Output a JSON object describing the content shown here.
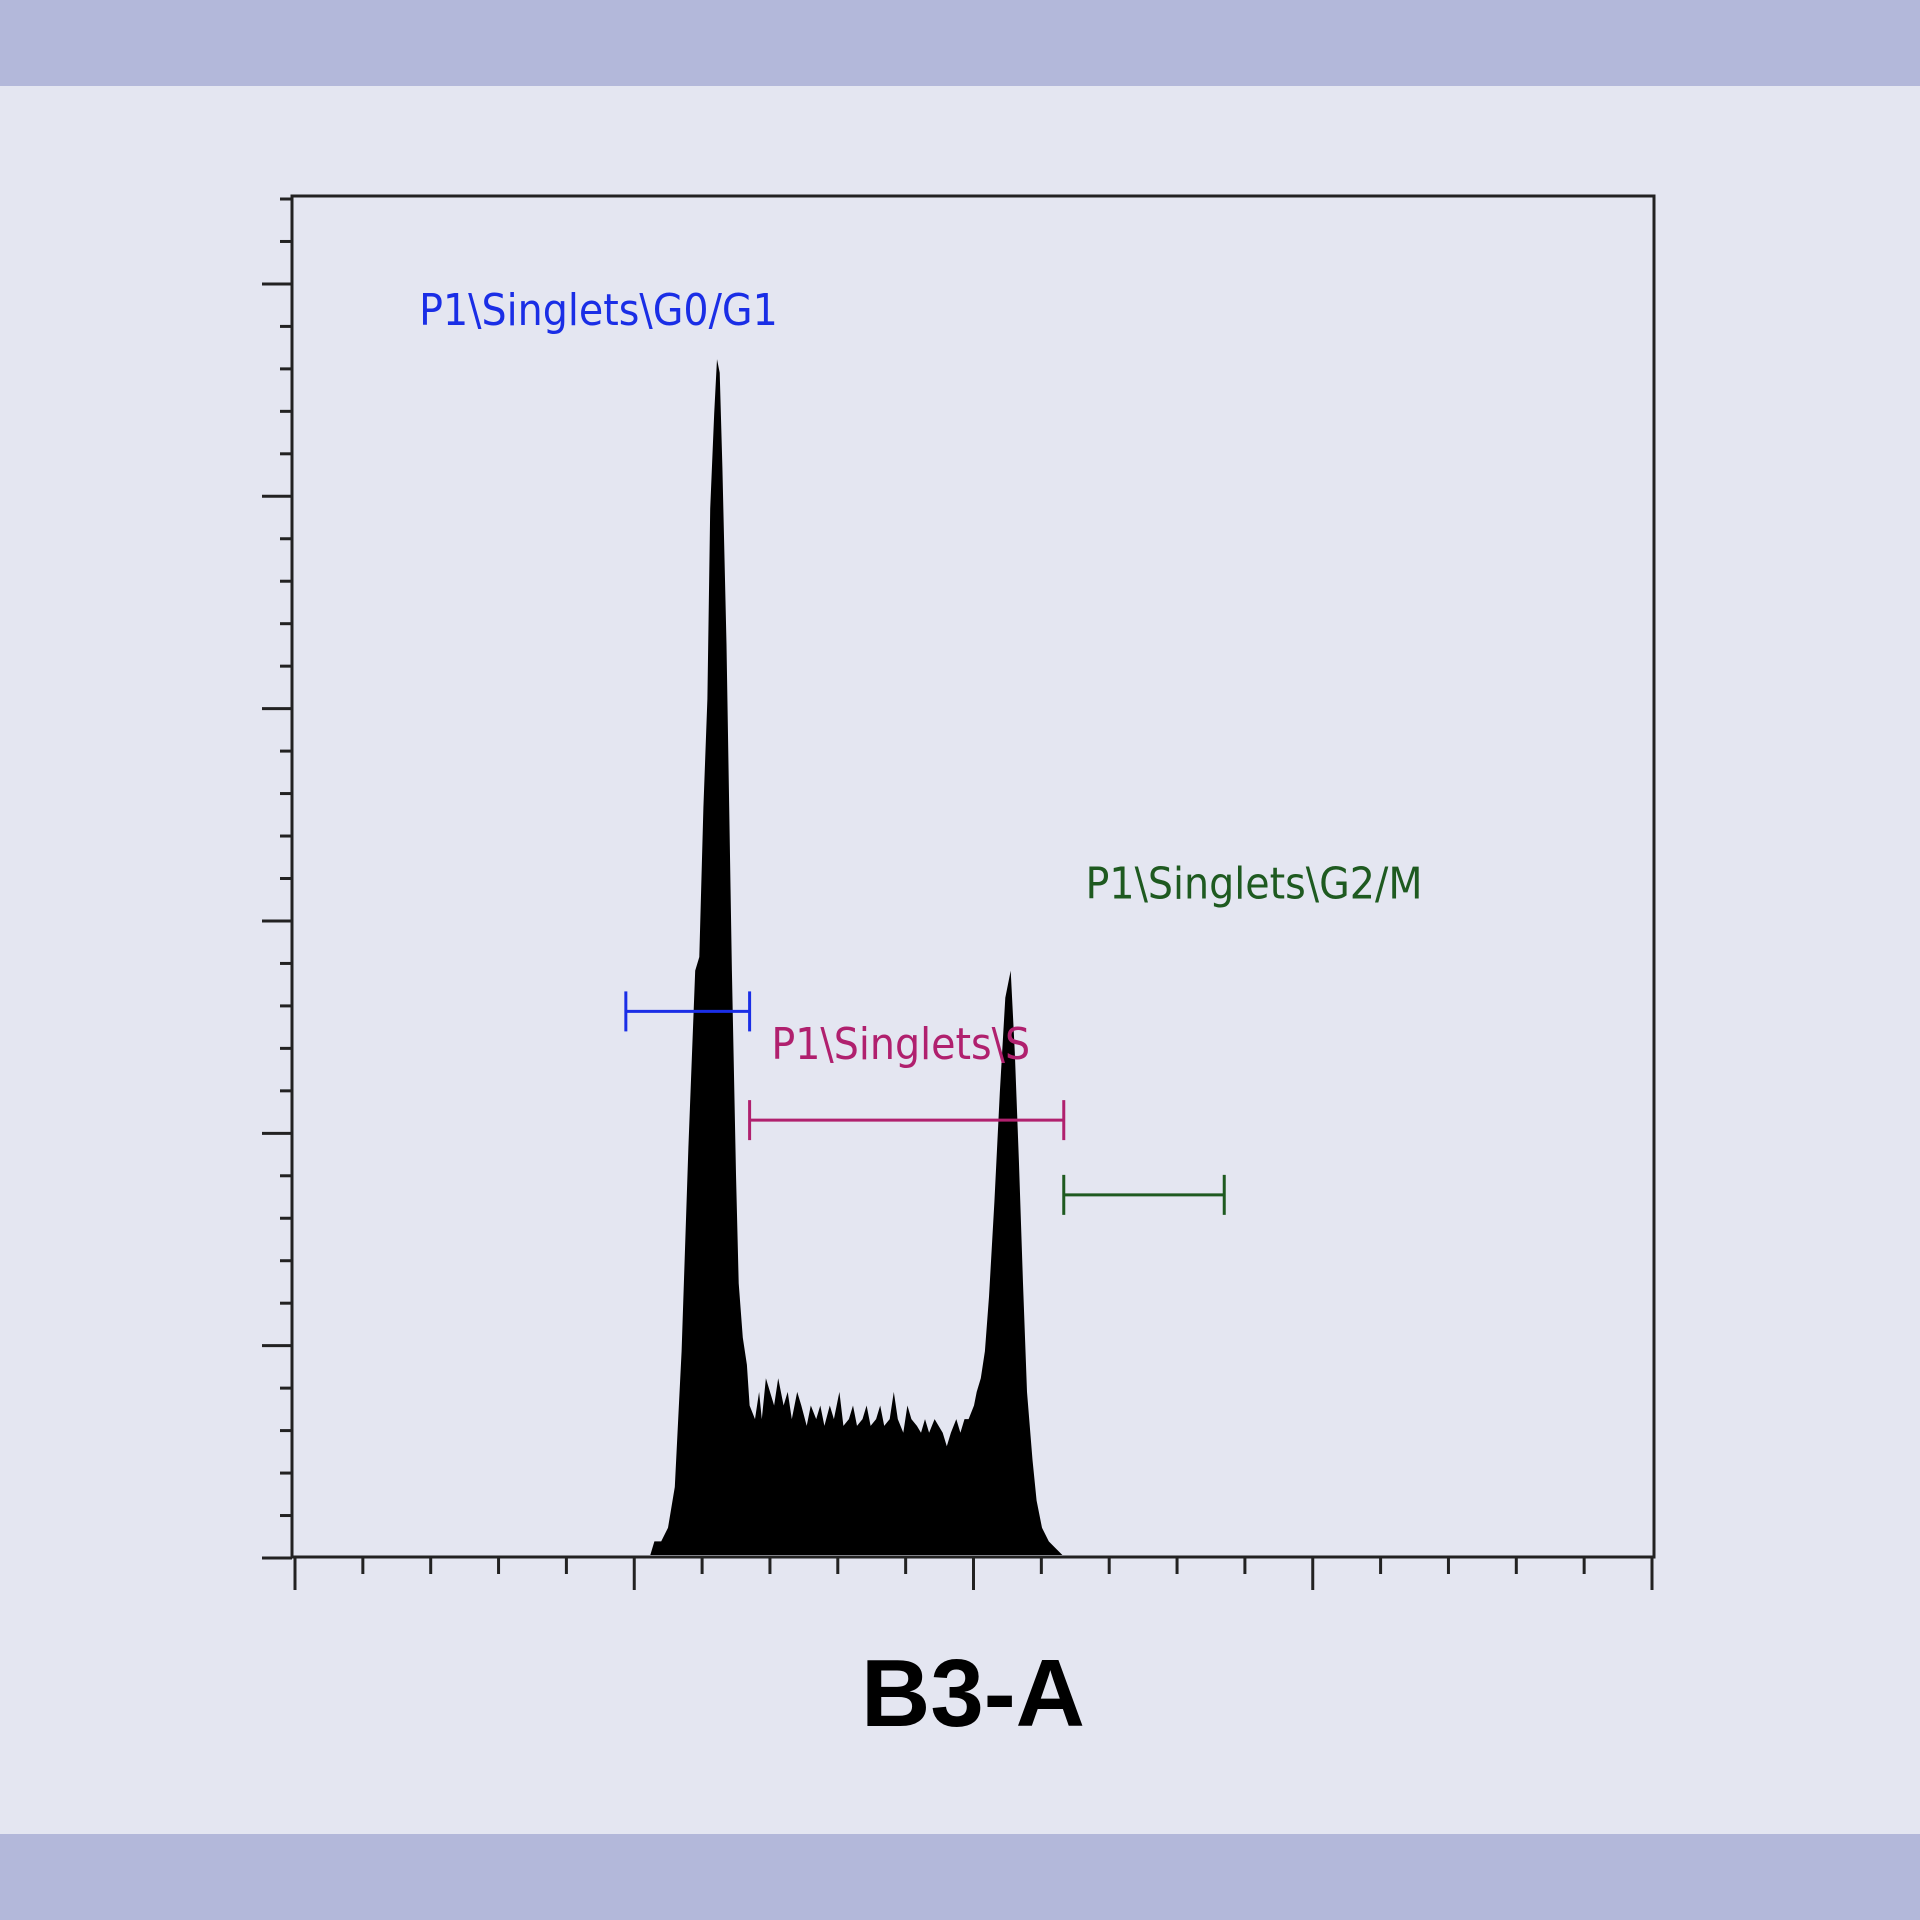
{
  "chart_data": {
    "type": "histogram",
    "xlabel": "B3-A",
    "x_ticks": {
      "minor_count": 20,
      "major_every": 5
    },
    "y_ticks": {
      "minor_count": 32,
      "major_every": 5
    },
    "histogram": {
      "color": "#000000",
      "bins": [
        [
          0.257,
          0.0
        ],
        [
          0.262,
          0.0
        ],
        [
          0.265,
          0.01
        ],
        [
          0.27,
          0.01
        ],
        [
          0.275,
          0.02
        ],
        [
          0.28,
          0.05
        ],
        [
          0.285,
          0.15
        ],
        [
          0.29,
          0.3
        ],
        [
          0.295,
          0.43
        ],
        [
          0.298,
          0.44
        ],
        [
          0.301,
          0.55
        ],
        [
          0.304,
          0.63
        ],
        [
          0.306,
          0.77
        ],
        [
          0.309,
          0.84
        ],
        [
          0.311,
          0.88
        ],
        [
          0.313,
          0.87
        ],
        [
          0.315,
          0.8
        ],
        [
          0.318,
          0.67
        ],
        [
          0.32,
          0.55
        ],
        [
          0.322,
          0.43
        ],
        [
          0.325,
          0.28
        ],
        [
          0.327,
          0.2
        ],
        [
          0.33,
          0.16
        ],
        [
          0.333,
          0.14
        ],
        [
          0.335,
          0.11
        ],
        [
          0.339,
          0.1
        ],
        [
          0.342,
          0.12
        ],
        [
          0.344,
          0.1
        ],
        [
          0.347,
          0.13
        ],
        [
          0.35,
          0.12
        ],
        [
          0.353,
          0.11
        ],
        [
          0.356,
          0.13
        ],
        [
          0.36,
          0.11
        ],
        [
          0.363,
          0.12
        ],
        [
          0.366,
          0.1
        ],
        [
          0.37,
          0.12
        ],
        [
          0.373,
          0.11
        ],
        [
          0.377,
          0.095
        ],
        [
          0.38,
          0.11
        ],
        [
          0.384,
          0.1
        ],
        [
          0.387,
          0.11
        ],
        [
          0.39,
          0.095
        ],
        [
          0.394,
          0.11
        ],
        [
          0.397,
          0.1
        ],
        [
          0.401,
          0.12
        ],
        [
          0.404,
          0.095
        ],
        [
          0.408,
          0.1
        ],
        [
          0.411,
          0.11
        ],
        [
          0.414,
          0.095
        ],
        [
          0.418,
          0.1
        ],
        [
          0.421,
          0.11
        ],
        [
          0.424,
          0.095
        ],
        [
          0.428,
          0.1
        ],
        [
          0.431,
          0.11
        ],
        [
          0.434,
          0.095
        ],
        [
          0.438,
          0.1
        ],
        [
          0.441,
          0.12
        ],
        [
          0.444,
          0.1
        ],
        [
          0.448,
          0.09
        ],
        [
          0.451,
          0.11
        ],
        [
          0.454,
          0.1
        ],
        [
          0.458,
          0.095
        ],
        [
          0.461,
          0.09
        ],
        [
          0.464,
          0.1
        ],
        [
          0.467,
          0.09
        ],
        [
          0.471,
          0.1
        ],
        [
          0.474,
          0.095
        ],
        [
          0.477,
          0.09
        ],
        [
          0.48,
          0.08
        ],
        [
          0.483,
          0.09
        ],
        [
          0.487,
          0.1
        ],
        [
          0.49,
          0.09
        ],
        [
          0.493,
          0.1
        ],
        [
          0.496,
          0.1
        ],
        [
          0.5,
          0.11
        ],
        [
          0.502,
          0.12
        ],
        [
          0.505,
          0.13
        ],
        [
          0.508,
          0.15
        ],
        [
          0.511,
          0.19
        ],
        [
          0.515,
          0.26
        ],
        [
          0.519,
          0.34
        ],
        [
          0.523,
          0.41
        ],
        [
          0.527,
          0.43
        ],
        [
          0.53,
          0.37
        ],
        [
          0.533,
          0.29
        ],
        [
          0.536,
          0.2
        ],
        [
          0.539,
          0.12
        ],
        [
          0.543,
          0.07
        ],
        [
          0.546,
          0.04
        ],
        [
          0.55,
          0.02
        ],
        [
          0.555,
          0.01
        ],
        [
          0.56,
          0.005
        ],
        [
          0.565,
          0.0
        ]
      ]
    },
    "gates": [
      {
        "name": "P1\\Singlets\\G0/G1",
        "color": "#1a2ee6",
        "x_start": 0.244,
        "x_end": 0.335,
        "y_level": 0.4,
        "label_x": 0.092,
        "label_y": 0.905
      },
      {
        "name": "P1\\Singlets\\S",
        "color": "#b0206e",
        "x_start": 0.335,
        "x_end": 0.566,
        "y_level": 0.32,
        "label_x": 0.351,
        "label_y": 0.365
      },
      {
        "name": "P1\\Singlets\\G2/M",
        "color": "#1e5a20",
        "x_start": 0.566,
        "x_end": 0.684,
        "y_level": 0.265,
        "label_x": 0.582,
        "label_y": 0.483
      }
    ]
  }
}
